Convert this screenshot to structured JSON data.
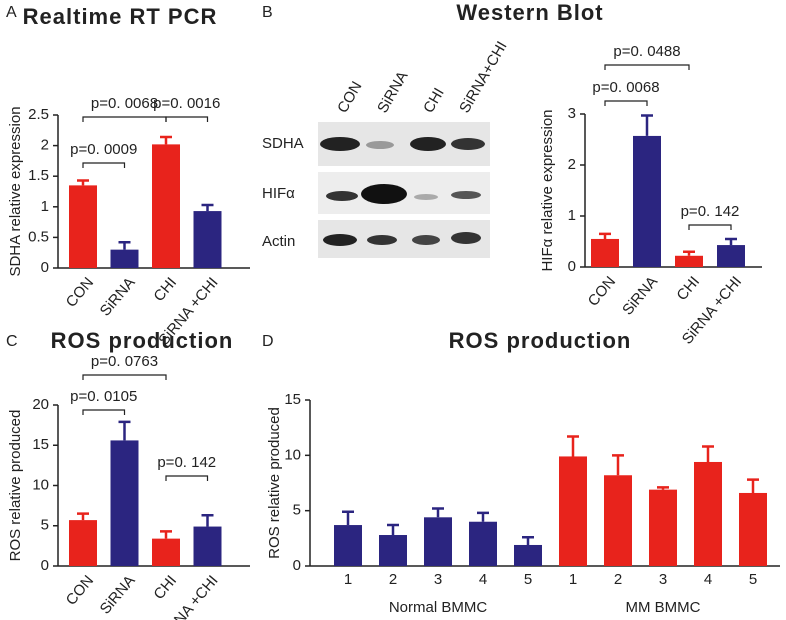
{
  "chart_data": [
    {
      "type": "bar",
      "panel": "A",
      "title": "Realtime RT PCR",
      "y_label": "SDHA relative expression",
      "categories": [
        "CON",
        "SiRNA",
        "CHI",
        "SiRNA +CHI"
      ],
      "values": [
        1.35,
        0.3,
        2.02,
        0.93
      ],
      "errors": [
        0.08,
        0.12,
        0.12,
        0.1
      ],
      "colors": [
        "#e8231c",
        "#2b2580",
        "#e8231c",
        "#2b2580"
      ],
      "ylim": [
        0,
        2.5
      ],
      "yticks": [
        0,
        0.5,
        1,
        1.5,
        2,
        2.5
      ],
      "annotations": [
        "p=0. 0009",
        "p=0. 0068",
        "p=0. 0016"
      ]
    },
    {
      "type": "bar",
      "y_label": "HIFα relative expression",
      "categories": [
        "CON",
        "SiRNA",
        "CHI",
        "SiRNA +CHI"
      ],
      "values": [
        0.55,
        2.57,
        0.22,
        0.43
      ],
      "errors": [
        0.1,
        0.4,
        0.08,
        0.12
      ],
      "colors": [
        "#e8231c",
        "#2b2580",
        "#e8231c",
        "#2b2580"
      ],
      "ylim": [
        0,
        3
      ],
      "yticks": [
        0,
        1,
        2,
        3
      ],
      "annotations": [
        "p=0. 0068",
        "p=0. 0488",
        "p=0. 142"
      ]
    },
    {
      "type": "bar",
      "panel": "C",
      "title": "ROS production",
      "y_label": "ROS relative produced",
      "categories": [
        "CON",
        "SiRNA",
        "CHI",
        "SiRNA +CHI"
      ],
      "values": [
        5.7,
        15.6,
        3.4,
        4.9
      ],
      "errors": [
        0.8,
        2.3,
        0.9,
        1.4
      ],
      "colors": [
        "#e8231c",
        "#2b2580",
        "#e8231c",
        "#2b2580"
      ],
      "ylim": [
        0,
        20
      ],
      "yticks": [
        0,
        5,
        10,
        15,
        20
      ],
      "annotations": [
        "p=0. 0105",
        "p=0. 0763",
        "p=0. 142"
      ]
    },
    {
      "type": "grouped_bar",
      "panel": "D",
      "title": "ROS production",
      "y_label": "ROS relative produced",
      "groups": [
        {
          "name": "Normal BMMC",
          "color": "#2b2580",
          "categories": [
            "1",
            "2",
            "3",
            "4",
            "5"
          ],
          "values": [
            3.7,
            2.8,
            4.4,
            4.0,
            1.9
          ],
          "errors": [
            1.2,
            0.9,
            0.8,
            0.8,
            0.7
          ]
        },
        {
          "name": "MM BMMC",
          "color": "#e8231c",
          "categories": [
            "1",
            "2",
            "3",
            "4",
            "5"
          ],
          "values": [
            9.9,
            8.2,
            6.9,
            9.4,
            6.6
          ],
          "errors": [
            1.8,
            1.8,
            0.2,
            1.4,
            1.2
          ]
        }
      ],
      "ylim": [
        0,
        15
      ],
      "yticks": [
        0,
        5,
        10,
        15
      ]
    }
  ],
  "western_blot": {
    "panel": "B",
    "title": "Western Blot",
    "lanes": [
      "CON",
      "SiRNA",
      "CHI",
      "SiRNA+CHI"
    ],
    "rows": [
      "SDHA",
      "HIFα",
      "Actin"
    ]
  }
}
